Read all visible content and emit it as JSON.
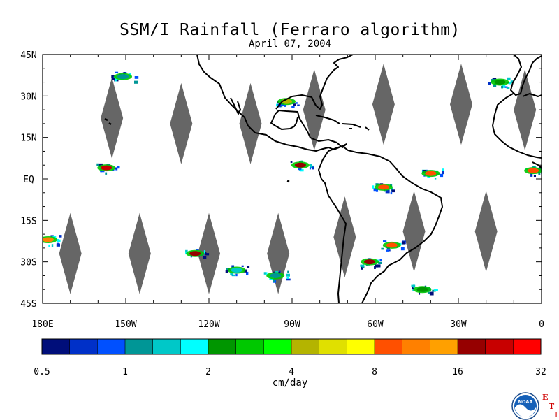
{
  "title": "SSM/I Rainfall (Ferraro algorithm)",
  "date": "April 07, 2004",
  "lat_labels": [
    "45N",
    "30N",
    "15N",
    "EQ",
    "15S",
    "30S",
    "45S"
  ],
  "lat_values": [
    45,
    30,
    15,
    0,
    -15,
    -30,
    -45
  ],
  "lon_labels": [
    "180E",
    "150W",
    "120W",
    "90W",
    "60W",
    "30W",
    "0"
  ],
  "lon_values": [
    -180,
    -150,
    -120,
    -90,
    -60,
    -30,
    0
  ],
  "colorbar": {
    "colors": [
      "#000e7a",
      "#0030c8",
      "#0050ff",
      "#009696",
      "#00c8c8",
      "#00ffff",
      "#009600",
      "#00c800",
      "#00ff00",
      "#b4b400",
      "#e0e000",
      "#ffff00",
      "#ff5000",
      "#ff8000",
      "#ffa000",
      "#960000",
      "#c80000",
      "#ff0000"
    ],
    "tick_labels": [
      "0.5",
      "1",
      "2",
      "4",
      "8",
      "16",
      "32"
    ],
    "unit": "cm/day"
  },
  "logo": {
    "text": "NOAA",
    "suffix_letters": [
      "E",
      "T",
      "I"
    ]
  },
  "chart_data": {
    "type": "heatmap",
    "title": "SSM/I Rainfall (Ferraro algorithm)",
    "subtitle": "April 07, 2004",
    "lon_range": [
      -180,
      0
    ],
    "lat_range": [
      -45,
      45
    ],
    "colorbar_scale": "log2",
    "colorbar_range": [
      0.5,
      32
    ],
    "colorbar_unit": "cm/day",
    "no_data_swath_gaps": [
      {
        "lon": -155,
        "lat": 22
      },
      {
        "lon": -130,
        "lat": 20
      },
      {
        "lon": -105,
        "lat": 20
      },
      {
        "lon": -82,
        "lat": 25
      },
      {
        "lon": -57,
        "lat": 27
      },
      {
        "lon": -29,
        "lat": 27
      },
      {
        "lon": -6,
        "lat": 25
      },
      {
        "lon": -170,
        "lat": -27
      },
      {
        "lon": -145,
        "lat": -27
      },
      {
        "lon": -120,
        "lat": -27
      },
      {
        "lon": -95,
        "lat": -27
      },
      {
        "lon": -71,
        "lat": -21
      },
      {
        "lon": -46,
        "lat": -19
      },
      {
        "lon": -20,
        "lat": -19
      }
    ],
    "rain_features": [
      {
        "lon": -157,
        "lat": 4,
        "rate": 24
      },
      {
        "lon": -151,
        "lat": 37,
        "rate": 1
      },
      {
        "lon": -87,
        "lat": 5,
        "rate": 16
      },
      {
        "lon": -92,
        "lat": 28,
        "rate": 4
      },
      {
        "lon": -125,
        "lat": -27,
        "rate": 20
      },
      {
        "lon": -110,
        "lat": -33,
        "rate": 1.5
      },
      {
        "lon": -96,
        "lat": -35,
        "rate": 1
      },
      {
        "lon": -57,
        "lat": -3,
        "rate": 8
      },
      {
        "lon": -40,
        "lat": 2,
        "rate": 8
      },
      {
        "lon": -62,
        "lat": -30,
        "rate": 20
      },
      {
        "lon": -54,
        "lat": -24,
        "rate": 10
      },
      {
        "lon": -178,
        "lat": -22,
        "rate": 12
      },
      {
        "lon": -43,
        "lat": -40,
        "rate": 2
      },
      {
        "lon": -3,
        "lat": 3,
        "rate": 10
      },
      {
        "lon": -15,
        "lat": 35,
        "rate": 2
      }
    ]
  }
}
